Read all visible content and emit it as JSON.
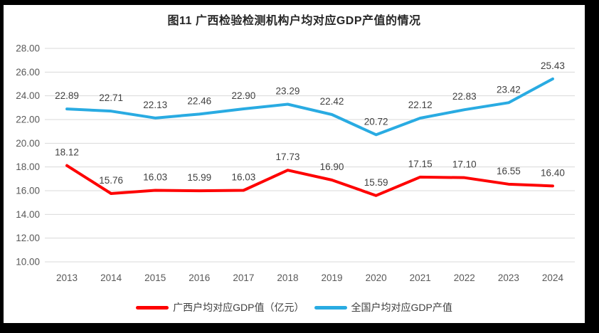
{
  "title": "图11 广西检验检测机构户均对应GDP产值的情况",
  "chart_data": {
    "type": "line",
    "categories": [
      "2013",
      "2014",
      "2015",
      "2016",
      "2017",
      "2018",
      "2019",
      "2020",
      "2021",
      "2022",
      "2023",
      "2024"
    ],
    "series": [
      {
        "name": "广西户均对应GDP值（亿元）",
        "color": "#FE0000",
        "values": [
          18.12,
          15.76,
          16.03,
          15.99,
          16.03,
          17.73,
          16.9,
          15.59,
          17.15,
          17.1,
          16.55,
          16.4
        ]
      },
      {
        "name": "全国户均对应GDP产值",
        "color": "#29ABE2",
        "values": [
          22.89,
          22.71,
          22.13,
          22.46,
          22.9,
          23.29,
          22.42,
          20.72,
          22.12,
          22.83,
          23.42,
          25.43
        ]
      }
    ],
    "title": "图11 广西检验检测机构户均对应GDP产值的情况",
    "xlabel": "",
    "ylabel": "",
    "ylim": [
      10,
      28
    ],
    "ytick_step": 2,
    "yticks": [
      "10.00",
      "12.00",
      "14.00",
      "16.00",
      "18.00",
      "20.00",
      "22.00",
      "24.00",
      "26.00",
      "28.00"
    ],
    "grid": true,
    "data_labels": true,
    "legend_position": "bottom",
    "gridline_color": "#D9D9D9",
    "axis_label_color": "#595959",
    "data_label_color": "#404040"
  }
}
